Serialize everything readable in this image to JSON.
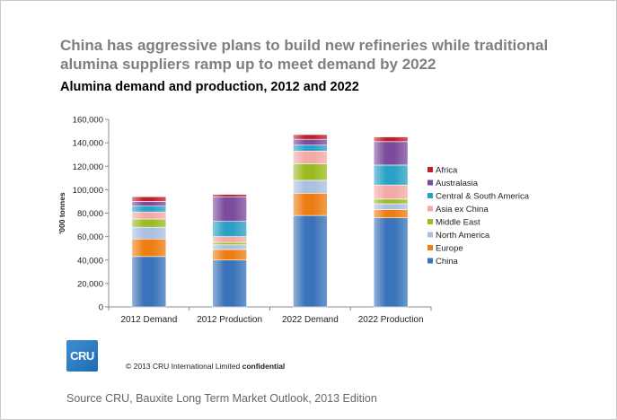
{
  "headline": "China has aggressive plans to build new refineries while traditional alumina suppliers ramp up to meet demand by 2022",
  "copyright": {
    "text": "© 2013 CRU International Limited",
    "emphasis": "confidential"
  },
  "logo": {
    "text": "CRU",
    "color": "#2a7cc2"
  },
  "source": "Source CRU, Bauxite Long Term Market Outlook, 2013 Edition",
  "chart_data": {
    "type": "bar",
    "stacked": true,
    "title": "Alumina demand and production, 2012 and 2022",
    "xlabel": "",
    "ylabel": "'000 tonnes",
    "ylim": [
      0,
      160000
    ],
    "yticks": [
      0,
      20000,
      40000,
      60000,
      80000,
      100000,
      120000,
      140000,
      160000
    ],
    "ytick_labels": [
      "0",
      "20,000",
      "40,000",
      "60,000",
      "80,000",
      "100,000",
      "120,000",
      "140,000",
      "160,000"
    ],
    "categories": [
      "2012 Demand",
      "2012 Production",
      "2022 Demand",
      "2022 Production"
    ],
    "legend_position": "right",
    "series": [
      {
        "name": "China",
        "color": "#3a73b9",
        "values": [
          43000,
          40000,
          78000,
          76000
        ]
      },
      {
        "name": "Europe",
        "color": "#ee7d12",
        "values": [
          15000,
          9000,
          19000,
          7000
        ]
      },
      {
        "name": "North America",
        "color": "#a9c0e0",
        "values": [
          10000,
          4000,
          11000,
          5000
        ]
      },
      {
        "name": "Middle East",
        "color": "#9bbb22",
        "values": [
          7000,
          2000,
          14000,
          4000
        ]
      },
      {
        "name": "Asia ex China",
        "color": "#f2aaa6",
        "values": [
          6000,
          5000,
          11000,
          12000
        ]
      },
      {
        "name": "Central & South America",
        "color": "#2aa1c5",
        "values": [
          5000,
          13000,
          5000,
          17000
        ]
      },
      {
        "name": "Australasia",
        "color": "#7c4b9c",
        "values": [
          4000,
          21000,
          5000,
          20000
        ]
      },
      {
        "name": "Africa",
        "color": "#c0202c",
        "values": [
          4000,
          2000,
          4000,
          4000
        ]
      }
    ]
  }
}
